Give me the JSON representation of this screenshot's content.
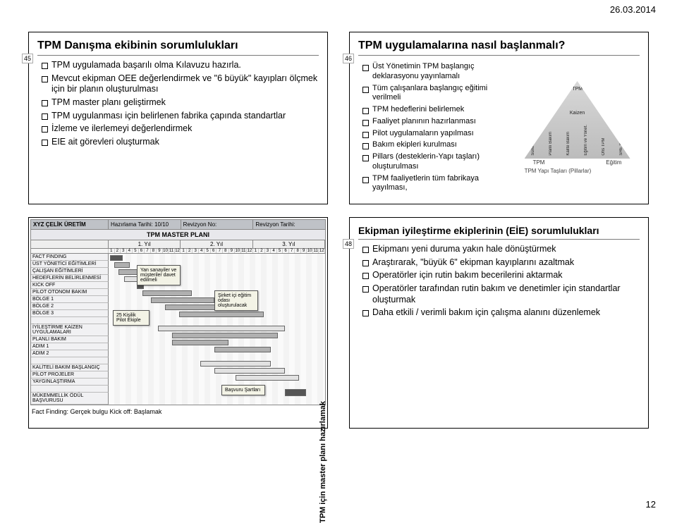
{
  "page": {
    "date": "26.03.2014",
    "number": "12"
  },
  "slide45": {
    "num": "45",
    "title": "TPM Danışma ekibinin sorumlulukları",
    "bullets": [
      "TPM uygulamada başarılı olma Kılavuzu hazırla.",
      "Mevcut ekipman OEE değerlendirmek ve \"6 büyük\" kayıpları ölçmek için bir planın oluşturulması",
      "TPM master planı geliştirmek",
      "TPM uygulanması için belirlenen fabrika çapında standartlar",
      "İzleme ve ilerlemeyi değerlendirmek",
      "EIE ait görevleri oluşturmak"
    ]
  },
  "slide46": {
    "num": "46",
    "title": "TPM uygulamalarına nasıl başlanmalı?",
    "bullets": [
      "Üst Yönetimin TPM başlangıç deklarasyonu yayınlamalı",
      "Tüm çalışanlara başlangıç eğitimi verilmeli",
      "TPM hedeflerini belirlemek",
      "Faaliyet planının hazırlanması",
      "Pilot uygulamaların yapılması",
      "Bakım ekipleri kurulması",
      "Pillars (desteklerin-Yapı taşları) oluşturulması",
      "TPM faaliyetlerin tüm fabrikaya yayılması,"
    ],
    "pyr": {
      "top": "TPM",
      "mid": "Kaizen",
      "bottom": [
        "Sürekli Bakım",
        "Planlı Bakım",
        "Kalite Bakım",
        "Eğitim ve Yönet.",
        "Ofis TPM",
        "SHE Yönetimi"
      ],
      "base": [
        "TPM",
        "Eğitim"
      ],
      "caption": "TPM\nYapı Taşları\n(Pillarlar)"
    }
  },
  "slide47": {
    "company": "XYZ ÇELİK ÜRETİM",
    "header": {
      "hazirlama": "Hazırlama Tarihi: 10/10",
      "revno": "Revizyon No:",
      "revtarih": "Revizyon Tarihi:"
    },
    "title": "TPM MASTER PLANI",
    "years": [
      "1. Yıl",
      "2. Yıl",
      "3. Yıl"
    ],
    "rows": [
      "FACT FINDING",
      "ÜST YÖNETİCİ EĞİTİMLERİ",
      "ÇALIŞAN EĞİTİMLERİ",
      "HEDEFLERİN BELİRLENMESİ",
      "KICK OFF",
      "PİLOT OTONOM BAKIM",
      "BÖLGE 1",
      "BÖLGE 2",
      "BÖLGE 3",
      "",
      "İYİLEŞTİRME KAİZEN UYGULAMALARI",
      "PLANLI BAKIM",
      "ADIM 1",
      "ADIM 2",
      "",
      "KALİTELİ BAKIM BAŞLANGIÇ",
      "PİLOT PROJELER",
      "YAYGINLAŞTIRMA",
      "",
      "MÜKEMMELLİK ÖDÜL BAŞVURUSU"
    ],
    "notes": {
      "left": "Yan sanayiler ve müşteriler davet edilmeli",
      "mid": "25 Kişilik Pilot Ekiple",
      "right_top": "Şirket içi eğitim odası oluşturulacak",
      "right_bot": "Başvuru Şartları"
    },
    "footer": "Fact Finding: Gerçek bulgu     Kick off: Başlamak",
    "vlabel": "TPM için master planı hazırlamak"
  },
  "slide48": {
    "num": "48",
    "title": "Ekipman iyileştirme ekiplerinin (EİE) sorumlulukları",
    "bullets": [
      "Ekipmanı yeni duruma yakın hale dönüştürmek",
      "Araştırarak, \"büyük 6\" ekipman kayıplarını azaltmak",
      "Operatörler için rutin bakım becerilerini aktarmak",
      "Operatörler tarafından rutin bakım ve denetimler için standartlar oluşturmak",
      "Daha etkili / verimli bakım için çalışma alanını düzenlemek"
    ]
  }
}
